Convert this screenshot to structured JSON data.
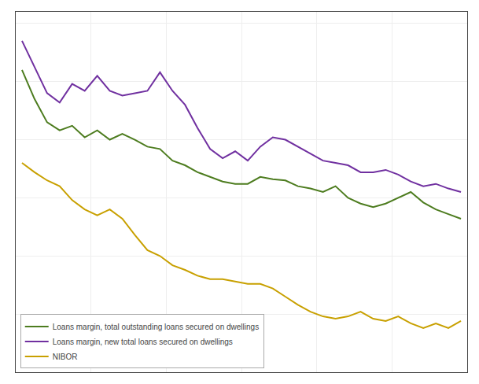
{
  "chart_data": {
    "type": "line",
    "x": [
      0,
      1,
      2,
      3,
      4,
      5,
      6,
      7,
      8,
      9,
      10,
      11,
      12,
      13,
      14,
      15,
      16,
      17,
      18,
      19,
      20,
      21,
      22,
      23,
      24,
      25,
      26,
      27,
      28,
      29,
      30,
      31,
      32,
      33,
      34,
      35
    ],
    "series": [
      {
        "name": "Loans margin, total outstanding loans secured on dwellings",
        "color": "#4d7c1f",
        "values": [
          3.1,
          2.85,
          2.65,
          2.58,
          2.62,
          2.52,
          2.58,
          2.5,
          2.55,
          2.5,
          2.44,
          2.42,
          2.32,
          2.28,
          2.22,
          2.18,
          2.14,
          2.12,
          2.12,
          2.18,
          2.16,
          2.15,
          2.1,
          2.08,
          2.05,
          2.1,
          2.0,
          1.95,
          1.92,
          1.95,
          2.0,
          2.05,
          1.96,
          1.9,
          1.86,
          1.82
        ]
      },
      {
        "name": "Loans margin, new total loans secured on dwellings",
        "color": "#7030a0",
        "values": [
          3.35,
          3.12,
          2.9,
          2.82,
          2.98,
          2.92,
          3.05,
          2.92,
          2.88,
          2.9,
          2.92,
          3.08,
          2.92,
          2.8,
          2.6,
          2.42,
          2.34,
          2.4,
          2.32,
          2.44,
          2.52,
          2.5,
          2.44,
          2.38,
          2.32,
          2.3,
          2.28,
          2.22,
          2.22,
          2.24,
          2.2,
          2.14,
          2.1,
          2.12,
          2.08,
          2.05
        ]
      },
      {
        "name": "NIBOR",
        "color": "#c8a000",
        "values": [
          2.3,
          2.22,
          2.15,
          2.1,
          1.98,
          1.9,
          1.85,
          1.9,
          1.82,
          1.68,
          1.55,
          1.5,
          1.42,
          1.38,
          1.33,
          1.3,
          1.3,
          1.28,
          1.26,
          1.26,
          1.22,
          1.15,
          1.08,
          1.02,
          0.98,
          0.96,
          0.98,
          1.02,
          0.96,
          0.94,
          0.98,
          0.92,
          0.88,
          0.92,
          0.88,
          0.94
        ]
      }
    ],
    "xlim": [
      -0.5,
      35.5
    ],
    "xticks": [
      -0.5,
      5.5,
      11.5,
      17.5,
      23.5,
      29.5,
      35.5
    ],
    "ylim": [
      0.5,
      3.6
    ],
    "yticks": [
      0.5,
      1.0,
      1.5,
      2.0,
      2.5,
      3.0,
      3.5
    ],
    "grid": true,
    "tick_labels": false,
    "legend": "lower left"
  }
}
